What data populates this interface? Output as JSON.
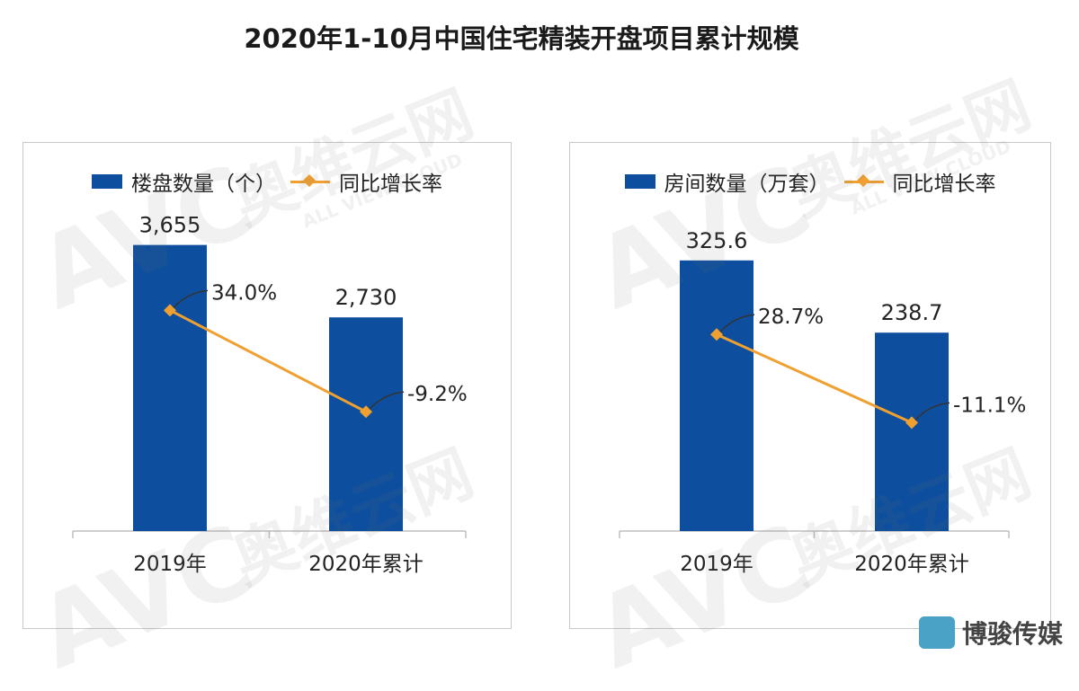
{
  "page": {
    "title": "2020年1-10月中国住宅精装开盘项目累计规模"
  },
  "watermark": {
    "main": "AVC",
    "cn": "奥维云网",
    "en": "ALL VIEW CLOUD"
  },
  "logo": {
    "text": "博骏传媒",
    "color": "#4aa3c7"
  },
  "colors": {
    "bar": "#0d4f9e",
    "line": "#f0a030"
  },
  "chart_data": [
    {
      "type": "bar",
      "categories": [
        "2019年",
        "2020年累计"
      ],
      "series": [
        {
          "name": "楼盘数量（个）",
          "type": "bar",
          "values": [
            3655,
            2730
          ],
          "labels": [
            "3,655",
            "2,730"
          ]
        },
        {
          "name": "同比增长率",
          "type": "line",
          "values": [
            34.0,
            -9.2
          ],
          "labels": [
            "34.0%",
            "-9.2%"
          ]
        }
      ],
      "ylim": [
        0,
        4500
      ],
      "y2lim": [
        -60,
        90
      ],
      "legend_position": "top",
      "grid": false
    },
    {
      "type": "bar",
      "categories": [
        "2019年",
        "2020年累计"
      ],
      "series": [
        {
          "name": "房间数量（万套）",
          "type": "bar",
          "values": [
            325.6,
            238.7
          ],
          "labels": [
            "325.6",
            "238.7"
          ]
        },
        {
          "name": "同比增长率",
          "type": "line",
          "values": [
            28.7,
            -11.1
          ],
          "labels": [
            "28.7%",
            "-11.1%"
          ]
        }
      ],
      "ylim": [
        0,
        400
      ],
      "y2lim": [
        -60,
        90
      ],
      "legend_position": "top",
      "grid": false
    }
  ]
}
